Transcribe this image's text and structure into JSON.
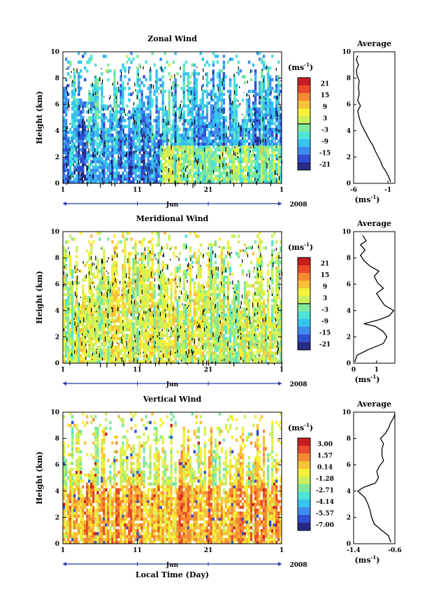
{
  "chart_data": [
    {
      "type": "heatmap",
      "title": "Zonal Wind",
      "ylabel": "Height (km)",
      "ylim": [
        0,
        10
      ],
      "yticks": [
        "0",
        "2",
        "4",
        "6",
        "8",
        "10"
      ],
      "xticks": [
        "1",
        "11",
        "21",
        "1"
      ],
      "month_label": "Jun",
      "year_label": "2008",
      "colorbar_unit": "(ms",
      "colorbar_exp": "-1",
      "colorbar_ticks": [
        "21",
        "15",
        "9",
        "3",
        "-3",
        "-9",
        "-15",
        "-21"
      ],
      "colorbar_range": [
        -21,
        21
      ],
      "zero_line": 0,
      "dominant_level": -6,
      "average": {
        "title": "Average",
        "xlabel": "(ms",
        "xlabel_exp": "-1",
        "xticks": [
          "-6",
          "-1"
        ],
        "xlim": [
          -6,
          0
        ],
        "profile": [
          [
            -0.6,
            0.1
          ],
          [
            -0.9,
            0.5
          ],
          [
            -1.3,
            0.9
          ],
          [
            -1.8,
            1.3
          ],
          [
            -2.1,
            1.7
          ],
          [
            -2.5,
            2.1
          ],
          [
            -2.9,
            2.5
          ],
          [
            -3.2,
            2.9
          ],
          [
            -3.6,
            3.2
          ],
          [
            -4.0,
            3.6
          ],
          [
            -4.4,
            4.0
          ],
          [
            -4.9,
            4.5
          ],
          [
            -5.2,
            5.0
          ],
          [
            -5.4,
            5.5
          ],
          [
            -5.0,
            5.9
          ],
          [
            -5.4,
            6.3
          ],
          [
            -5.2,
            6.8
          ],
          [
            -5.3,
            7.3
          ],
          [
            -5.2,
            7.8
          ],
          [
            -5.5,
            8.2
          ],
          [
            -5.6,
            8.6
          ],
          [
            -5.3,
            9.0
          ],
          [
            -5.6,
            9.4
          ],
          [
            -5.4,
            9.7
          ]
        ]
      }
    },
    {
      "type": "heatmap",
      "title": "Meridional Wind",
      "ylabel": "Height (km)",
      "ylim": [
        0,
        10
      ],
      "yticks": [
        "0",
        "2",
        "4",
        "6",
        "8",
        "10"
      ],
      "xticks": [
        "1",
        "11",
        "21",
        "1"
      ],
      "month_label": "Jun",
      "year_label": "2008",
      "colorbar_unit": "(ms",
      "colorbar_exp": "-1",
      "colorbar_ticks": [
        "21",
        "15",
        "9",
        "3",
        "-3",
        "-9",
        "-15",
        "-21"
      ],
      "colorbar_range": [
        -21,
        21
      ],
      "zero_line": 0,
      "dominant_level": 2,
      "average": {
        "title": "Average",
        "xlabel": "(ms",
        "xlabel_exp": "-1",
        "xticks": [
          "0",
          "1"
        ],
        "xlim": [
          0,
          1.8
        ],
        "profile": [
          [
            0.05,
            0.1
          ],
          [
            0.15,
            0.6
          ],
          [
            0.6,
            1.0
          ],
          [
            1.3,
            1.5
          ],
          [
            1.45,
            2.0
          ],
          [
            1.3,
            2.4
          ],
          [
            0.95,
            2.8
          ],
          [
            0.45,
            3.0
          ],
          [
            1.1,
            3.3
          ],
          [
            1.55,
            3.6
          ],
          [
            1.75,
            4.0
          ],
          [
            1.35,
            4.4
          ],
          [
            1.15,
            4.9
          ],
          [
            1.0,
            5.3
          ],
          [
            1.3,
            5.7
          ],
          [
            1.05,
            6.1
          ],
          [
            0.9,
            6.6
          ],
          [
            1.1,
            7.0
          ],
          [
            0.7,
            7.4
          ],
          [
            0.45,
            7.8
          ],
          [
            0.3,
            8.2
          ],
          [
            0.5,
            8.6
          ],
          [
            0.3,
            9.0
          ],
          [
            0.55,
            9.3
          ],
          [
            0.4,
            9.7
          ]
        ]
      }
    },
    {
      "type": "heatmap",
      "title": "Vertical Wind",
      "ylabel": "Height (km)",
      "ylim": [
        0,
        10
      ],
      "yticks": [
        "0",
        "2",
        "4",
        "6",
        "8",
        "10"
      ],
      "xticks": [
        "1",
        "11",
        "21",
        "1"
      ],
      "month_label": "Jun",
      "year_label": "2008",
      "xlabel": "Local Time (Day)",
      "colorbar_unit": "(ms",
      "colorbar_exp": "-1",
      "colorbar_ticks": [
        "3.00",
        "1.57",
        "0.14",
        "-1.28",
        "-2.71",
        "-4.14",
        "-5.57",
        "-7.00"
      ],
      "colorbar_range": [
        -7.0,
        3.0
      ],
      "zero_line": null,
      "dominant_level": -0.5,
      "average": {
        "title": "Average",
        "xlabel": "(ms",
        "xlabel_exp": "-1",
        "xticks": [
          "-1.4",
          "-0.6"
        ],
        "xlim": [
          -1.4,
          -0.6
        ],
        "profile": [
          [
            -0.68,
            0.1
          ],
          [
            -0.72,
            0.6
          ],
          [
            -0.85,
            1.0
          ],
          [
            -1.0,
            1.5
          ],
          [
            -1.05,
            2.0
          ],
          [
            -1.08,
            2.5
          ],
          [
            -1.12,
            3.0
          ],
          [
            -1.18,
            3.5
          ],
          [
            -1.32,
            4.0
          ],
          [
            -1.2,
            4.3
          ],
          [
            -0.98,
            4.6
          ],
          [
            -0.92,
            5.0
          ],
          [
            -0.95,
            5.5
          ],
          [
            -0.9,
            5.9
          ],
          [
            -0.82,
            6.3
          ],
          [
            -0.85,
            6.7
          ],
          [
            -0.85,
            7.2
          ],
          [
            -0.82,
            7.6
          ],
          [
            -0.88,
            8.0
          ],
          [
            -0.78,
            8.4
          ],
          [
            -0.72,
            8.8
          ],
          [
            -0.68,
            9.2
          ],
          [
            -0.62,
            9.6
          ],
          [
            -0.6,
            9.9
          ]
        ]
      }
    }
  ]
}
